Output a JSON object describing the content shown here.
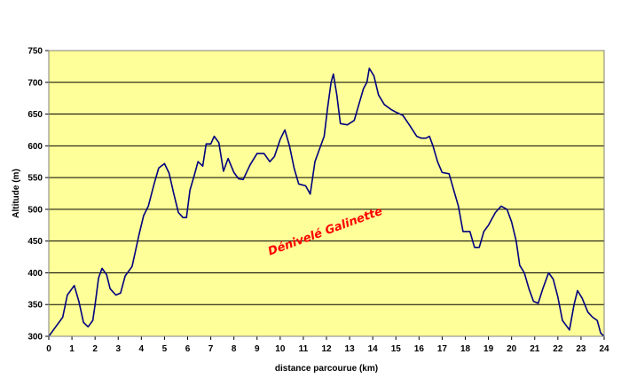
{
  "chart_data": {
    "type": "line",
    "title": "",
    "xlabel": "distance parcourue (km)",
    "ylabel": "Altitude (m)",
    "xlim": [
      0,
      24
    ],
    "ylim": [
      300,
      750
    ],
    "xticks": [
      0,
      1,
      2,
      3,
      4,
      5,
      6,
      7,
      8,
      9,
      10,
      11,
      12,
      13,
      14,
      15,
      16,
      17,
      18,
      19,
      20,
      21,
      22,
      23,
      24
    ],
    "yticks": [
      300,
      350,
      400,
      450,
      500,
      550,
      600,
      650,
      700,
      750
    ],
    "grid": "horizontal",
    "legend": "none",
    "annotation": {
      "text": "Dénivelé Galinette",
      "color": "#ff0000",
      "x": 12,
      "y": 460
    },
    "colors": {
      "plot_background": "#ffff99",
      "line": "#000080",
      "grid": "#000000",
      "frame": "#808080"
    },
    "series": [
      {
        "values": [
          [
            0,
            300
          ],
          [
            0.3,
            315
          ],
          [
            0.6,
            330
          ],
          [
            0.8,
            365
          ],
          [
            1.1,
            380
          ],
          [
            1.3,
            355
          ],
          [
            1.5,
            322
          ],
          [
            1.7,
            315
          ],
          [
            1.9,
            325
          ],
          [
            2.0,
            350
          ],
          [
            2.15,
            392
          ],
          [
            2.3,
            407
          ],
          [
            2.5,
            397
          ],
          [
            2.65,
            375
          ],
          [
            2.9,
            365
          ],
          [
            3.1,
            368
          ],
          [
            3.3,
            395
          ],
          [
            3.6,
            410
          ],
          [
            3.9,
            460
          ],
          [
            4.1,
            490
          ],
          [
            4.3,
            505
          ],
          [
            4.55,
            540
          ],
          [
            4.75,
            565
          ],
          [
            5.0,
            572
          ],
          [
            5.2,
            557
          ],
          [
            5.4,
            525
          ],
          [
            5.6,
            495
          ],
          [
            5.8,
            487
          ],
          [
            5.95,
            487
          ],
          [
            6.1,
            530
          ],
          [
            6.3,
            555
          ],
          [
            6.45,
            575
          ],
          [
            6.65,
            568
          ],
          [
            6.8,
            603
          ],
          [
            7.0,
            603
          ],
          [
            7.15,
            615
          ],
          [
            7.35,
            605
          ],
          [
            7.55,
            560
          ],
          [
            7.75,
            580
          ],
          [
            8.0,
            558
          ],
          [
            8.2,
            548
          ],
          [
            8.4,
            547
          ],
          [
            8.7,
            570
          ],
          [
            9.0,
            588
          ],
          [
            9.3,
            588
          ],
          [
            9.55,
            575
          ],
          [
            9.75,
            583
          ],
          [
            10.0,
            610
          ],
          [
            10.2,
            625
          ],
          [
            10.4,
            600
          ],
          [
            10.6,
            565
          ],
          [
            10.8,
            540
          ],
          [
            11.1,
            537
          ],
          [
            11.3,
            524
          ],
          [
            11.5,
            575
          ],
          [
            11.7,
            595
          ],
          [
            11.9,
            615
          ],
          [
            12.05,
            660
          ],
          [
            12.2,
            700
          ],
          [
            12.3,
            713
          ],
          [
            12.45,
            680
          ],
          [
            12.6,
            635
          ],
          [
            12.9,
            633
          ],
          [
            13.2,
            640
          ],
          [
            13.4,
            665
          ],
          [
            13.6,
            690
          ],
          [
            13.75,
            700
          ],
          [
            13.85,
            722
          ],
          [
            14.05,
            710
          ],
          [
            14.25,
            680
          ],
          [
            14.5,
            665
          ],
          [
            14.8,
            657
          ],
          [
            15.0,
            653
          ],
          [
            15.3,
            648
          ],
          [
            15.6,
            632
          ],
          [
            15.9,
            615
          ],
          [
            16.1,
            612
          ],
          [
            16.3,
            612
          ],
          [
            16.45,
            615
          ],
          [
            16.6,
            600
          ],
          [
            16.8,
            575
          ],
          [
            17.0,
            558
          ],
          [
            17.3,
            556
          ],
          [
            17.5,
            530
          ],
          [
            17.7,
            505
          ],
          [
            17.9,
            465
          ],
          [
            18.2,
            465
          ],
          [
            18.4,
            440
          ],
          [
            18.6,
            440
          ],
          [
            18.8,
            465
          ],
          [
            19.0,
            475
          ],
          [
            19.3,
            495
          ],
          [
            19.55,
            505
          ],
          [
            19.8,
            500
          ],
          [
            20.0,
            480
          ],
          [
            20.2,
            450
          ],
          [
            20.35,
            412
          ],
          [
            20.55,
            400
          ],
          [
            20.75,
            375
          ],
          [
            20.95,
            355
          ],
          [
            21.15,
            352
          ],
          [
            21.35,
            375
          ],
          [
            21.6,
            400
          ],
          [
            21.8,
            390
          ],
          [
            22.0,
            362
          ],
          [
            22.2,
            325
          ],
          [
            22.5,
            310
          ],
          [
            22.7,
            350
          ],
          [
            22.85,
            372
          ],
          [
            23.05,
            360
          ],
          [
            23.3,
            338
          ],
          [
            23.5,
            330
          ],
          [
            23.7,
            325
          ],
          [
            23.85,
            305
          ],
          [
            24.0,
            300
          ]
        ]
      }
    ]
  }
}
